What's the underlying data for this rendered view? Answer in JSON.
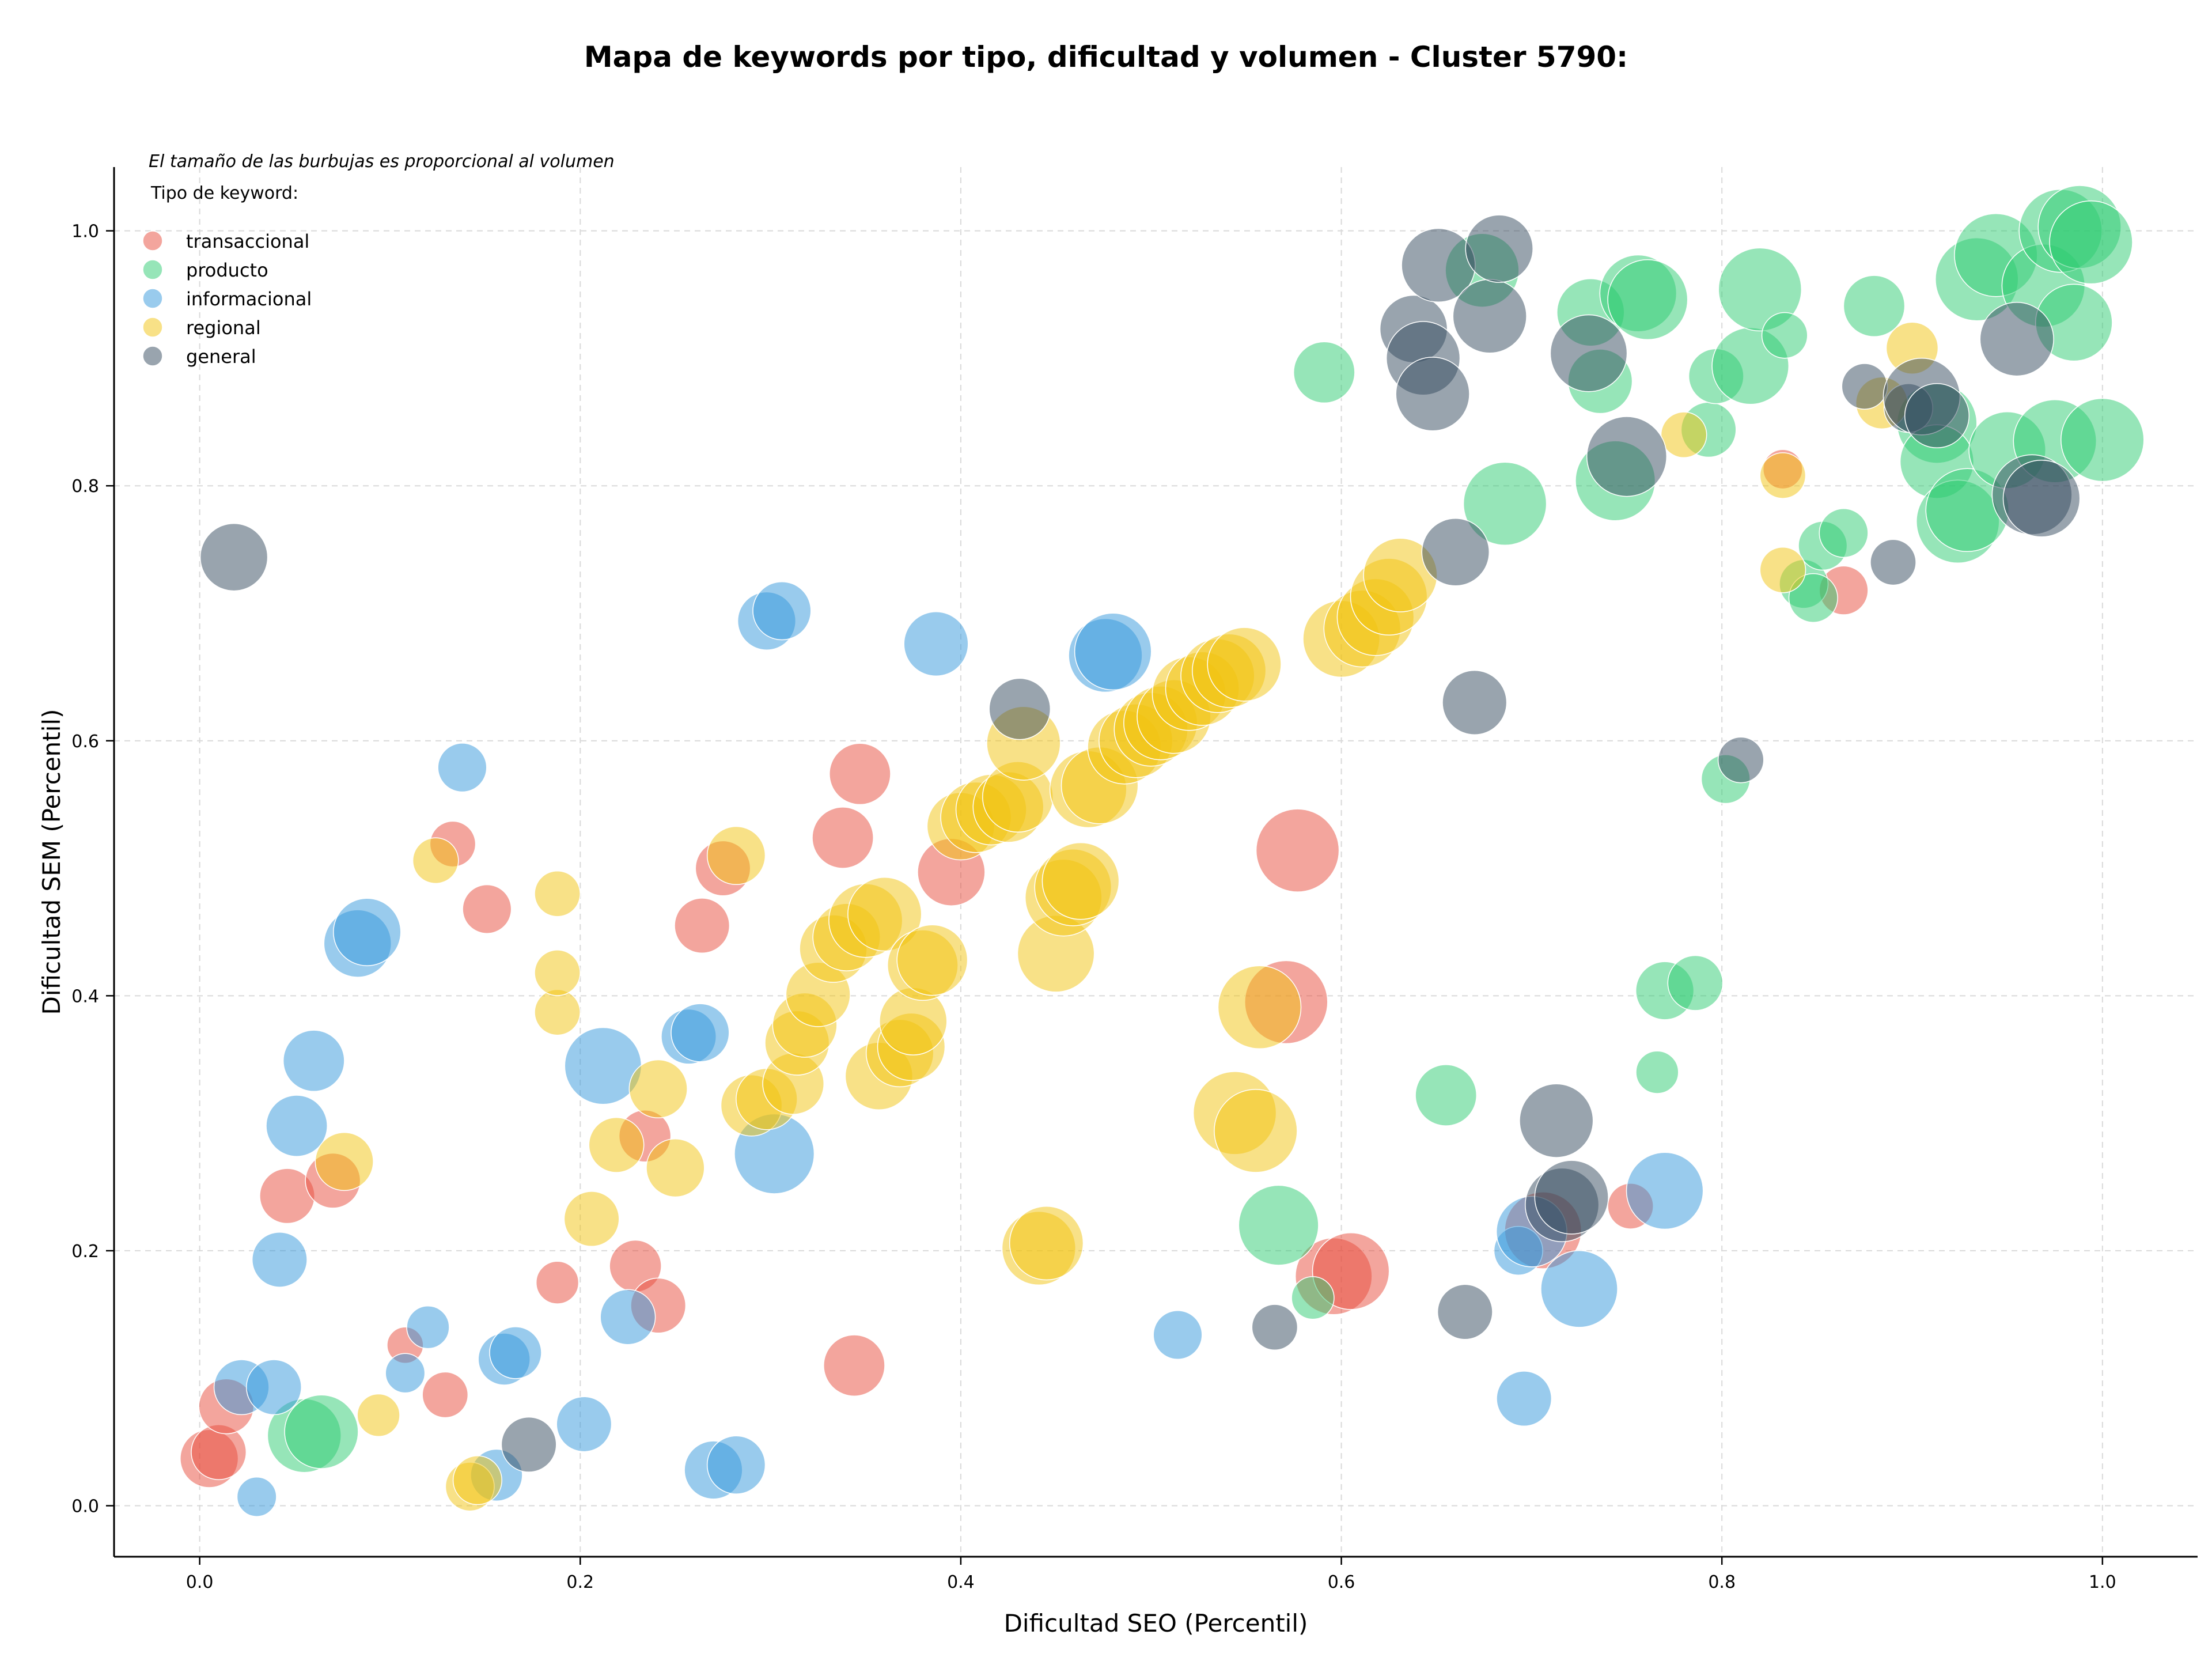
{
  "chart_data": {
    "type": "scatter",
    "title": "Mapa de keywords por tipo, dificultad y volumen - Cluster 5790:",
    "xlabel": "Dificultad SEO (Percentil)",
    "ylabel": "Dificultad SEM (Percentil)",
    "xlim": [
      -0.045,
      1.05
    ],
    "ylim": [
      -0.04,
      1.05
    ],
    "xticks": [
      "0.0",
      "0.2",
      "0.4",
      "0.6",
      "0.8",
      "1.0"
    ],
    "yticks": [
      "0.0",
      "0.2",
      "0.4",
      "0.6",
      "0.8",
      "1.0"
    ],
    "grid": true,
    "legend_position": "top-left",
    "legend_note": "El tamaño de las burbujas es proporcional al volumen",
    "legend_title": "Tipo de keyword:",
    "point_format": "[seo_difficulty, sem_difficulty, relative_volume]",
    "series": [
      {
        "name": "transaccional",
        "color": "#e74c3c",
        "points": [
          [
            0.005,
            0.037,
            0.6
          ],
          [
            0.01,
            0.042,
            0.55
          ],
          [
            0.014,
            0.078,
            0.55
          ],
          [
            0.046,
            0.243,
            0.55
          ],
          [
            0.07,
            0.255,
            0.55
          ],
          [
            0.108,
            0.126,
            0.25
          ],
          [
            0.129,
            0.087,
            0.4
          ],
          [
            0.133,
            0.519,
            0.4
          ],
          [
            0.151,
            0.468,
            0.45
          ],
          [
            0.188,
            0.175,
            0.35
          ],
          [
            0.229,
            0.188,
            0.5
          ],
          [
            0.234,
            0.29,
            0.5
          ],
          [
            0.241,
            0.157,
            0.55
          ],
          [
            0.264,
            0.455,
            0.55
          ],
          [
            0.275,
            0.5,
            0.55
          ],
          [
            0.338,
            0.524,
            0.65
          ],
          [
            0.347,
            0.574,
            0.65
          ],
          [
            0.344,
            0.11,
            0.65
          ],
          [
            0.395,
            0.497,
            0.75
          ],
          [
            0.577,
            0.514,
            1.0
          ],
          [
            0.571,
            0.395,
            1.0
          ],
          [
            0.596,
            0.18,
            0.9
          ],
          [
            0.605,
            0.184,
            0.9
          ],
          [
            0.706,
            0.216,
            0.9
          ],
          [
            0.752,
            0.235,
            0.4
          ],
          [
            0.832,
            0.813,
            0.3
          ],
          [
            0.864,
            0.718,
            0.45
          ]
        ]
      },
      {
        "name": "producto",
        "color": "#2ecc71",
        "points": [
          [
            0.055,
            0.055,
            0.85
          ],
          [
            0.064,
            0.058,
            0.85
          ],
          [
            0.567,
            0.22,
            0.95
          ],
          [
            0.585,
            0.163,
            0.35
          ],
          [
            0.591,
            0.889,
            0.65
          ],
          [
            0.655,
            0.322,
            0.65
          ],
          [
            0.674,
            0.969,
            0.85
          ],
          [
            0.686,
            0.786,
            1.0
          ],
          [
            0.731,
            0.936,
            0.75
          ],
          [
            0.736,
            0.882,
            0.7
          ],
          [
            0.744,
            0.804,
            0.95
          ],
          [
            0.756,
            0.951,
            0.9
          ],
          [
            0.761,
            0.946,
            0.95
          ],
          [
            0.766,
            0.34,
            0.35
          ],
          [
            0.77,
            0.404,
            0.6
          ],
          [
            0.786,
            0.41,
            0.55
          ],
          [
            0.793,
            0.844,
            0.55
          ],
          [
            0.797,
            0.886,
            0.55
          ],
          [
            0.802,
            0.57,
            0.45
          ],
          [
            0.815,
            0.894,
            0.9
          ],
          [
            0.82,
            0.954,
            1.0
          ],
          [
            0.833,
            0.918,
            0.4
          ],
          [
            0.843,
            0.723,
            0.45
          ],
          [
            0.848,
            0.712,
            0.45
          ],
          [
            0.853,
            0.753,
            0.45
          ],
          [
            0.864,
            0.763,
            0.45
          ],
          [
            0.88,
            0.941,
            0.65
          ],
          [
            0.913,
            0.849,
            0.95
          ],
          [
            0.913,
            0.819,
            0.85
          ],
          [
            0.924,
            0.772,
            1.0
          ],
          [
            0.929,
            0.781,
            1.0
          ],
          [
            0.934,
            0.962,
            1.0
          ],
          [
            0.944,
            0.981,
            1.0
          ],
          [
            0.95,
            0.828,
            0.9
          ],
          [
            0.969,
            0.957,
            1.0
          ],
          [
            0.975,
            0.835,
            1.0
          ],
          [
            0.978,
            1.0,
            1.0
          ],
          [
            0.988,
            1.003,
            1.0
          ],
          [
            0.985,
            0.928,
            0.9
          ],
          [
            0.994,
            0.991,
            1.0
          ],
          [
            1.0,
            0.836,
            1.0
          ]
        ]
      },
      {
        "name": "informacional",
        "color": "#3498db",
        "points": [
          [
            0.022,
            0.093,
            0.55
          ],
          [
            0.03,
            0.007,
            0.3
          ],
          [
            0.039,
            0.093,
            0.55
          ],
          [
            0.042,
            0.193,
            0.55
          ],
          [
            0.051,
            0.298,
            0.65
          ],
          [
            0.06,
            0.349,
            0.65
          ],
          [
            0.083,
            0.441,
            0.75
          ],
          [
            0.088,
            0.45,
            0.75
          ],
          [
            0.108,
            0.104,
            0.3
          ],
          [
            0.12,
            0.14,
            0.35
          ],
          [
            0.138,
            0.579,
            0.45
          ],
          [
            0.156,
            0.024,
            0.5
          ],
          [
            0.16,
            0.115,
            0.5
          ],
          [
            0.166,
            0.12,
            0.5
          ],
          [
            0.202,
            0.064,
            0.55
          ],
          [
            0.212,
            0.345,
            0.9
          ],
          [
            0.225,
            0.148,
            0.55
          ],
          [
            0.257,
            0.368,
            0.55
          ],
          [
            0.263,
            0.371,
            0.6
          ],
          [
            0.27,
            0.028,
            0.6
          ],
          [
            0.282,
            0.032,
            0.6
          ],
          [
            0.302,
            0.276,
            0.95
          ],
          [
            0.298,
            0.694,
            0.6
          ],
          [
            0.306,
            0.702,
            0.6
          ],
          [
            0.387,
            0.676,
            0.7
          ],
          [
            0.476,
            0.667,
            0.85
          ],
          [
            0.48,
            0.67,
            0.9
          ],
          [
            0.514,
            0.134,
            0.45
          ],
          [
            0.693,
            0.2,
            0.45
          ],
          [
            0.696,
            0.084,
            0.55
          ],
          [
            0.7,
            0.215,
            0.8
          ],
          [
            0.725,
            0.17,
            0.9
          ],
          [
            0.77,
            0.247,
            0.9
          ]
        ]
      },
      {
        "name": "regional",
        "color": "#f1c40f",
        "points": [
          [
            0.076,
            0.27,
            0.6
          ],
          [
            0.094,
            0.071,
            0.35
          ],
          [
            0.124,
            0.506,
            0.4
          ],
          [
            0.142,
            0.015,
            0.45
          ],
          [
            0.146,
            0.02,
            0.45
          ],
          [
            0.188,
            0.387,
            0.4
          ],
          [
            0.188,
            0.418,
            0.4
          ],
          [
            0.188,
            0.48,
            0.4
          ],
          [
            0.206,
            0.225,
            0.55
          ],
          [
            0.219,
            0.283,
            0.55
          ],
          [
            0.241,
            0.327,
            0.6
          ],
          [
            0.25,
            0.265,
            0.6
          ],
          [
            0.282,
            0.51,
            0.6
          ],
          [
            0.29,
            0.314,
            0.65
          ],
          [
            0.298,
            0.319,
            0.65
          ],
          [
            0.312,
            0.331,
            0.65
          ],
          [
            0.314,
            0.363,
            0.7
          ],
          [
            0.318,
            0.377,
            0.7
          ],
          [
            0.325,
            0.401,
            0.7
          ],
          [
            0.333,
            0.437,
            0.75
          ],
          [
            0.34,
            0.446,
            0.75
          ],
          [
            0.357,
            0.337,
            0.75
          ],
          [
            0.35,
            0.459,
            0.85
          ],
          [
            0.36,
            0.464,
            0.85
          ],
          [
            0.368,
            0.355,
            0.75
          ],
          [
            0.374,
            0.36,
            0.75
          ],
          [
            0.375,
            0.38,
            0.75
          ],
          [
            0.38,
            0.424,
            0.8
          ],
          [
            0.385,
            0.428,
            0.8
          ],
          [
            0.4,
            0.533,
            0.75
          ],
          [
            0.408,
            0.54,
            0.8
          ],
          [
            0.416,
            0.546,
            0.8
          ],
          [
            0.425,
            0.548,
            0.8
          ],
          [
            0.43,
            0.556,
            0.8
          ],
          [
            0.433,
            0.598,
            0.85
          ],
          [
            0.441,
            0.202,
            0.85
          ],
          [
            0.445,
            0.206,
            0.85
          ],
          [
            0.45,
            0.433,
            0.9
          ],
          [
            0.454,
            0.477,
            0.9
          ],
          [
            0.459,
            0.485,
            0.9
          ],
          [
            0.463,
            0.49,
            0.9
          ],
          [
            0.467,
            0.562,
            0.9
          ],
          [
            0.473,
            0.565,
            0.9
          ],
          [
            0.486,
            0.595,
            0.85
          ],
          [
            0.492,
            0.6,
            0.85
          ],
          [
            0.5,
            0.609,
            0.85
          ],
          [
            0.505,
            0.614,
            0.85
          ],
          [
            0.512,
            0.619,
            0.85
          ],
          [
            0.52,
            0.637,
            0.85
          ],
          [
            0.527,
            0.641,
            0.85
          ],
          [
            0.535,
            0.651,
            0.85
          ],
          [
            0.541,
            0.655,
            0.85
          ],
          [
            0.549,
            0.66,
            0.85
          ],
          [
            0.544,
            0.308,
            1.0
          ],
          [
            0.555,
            0.294,
            1.0
          ],
          [
            0.557,
            0.391,
            1.0
          ],
          [
            0.6,
            0.68,
            0.9
          ],
          [
            0.611,
            0.688,
            0.9
          ],
          [
            0.618,
            0.697,
            0.9
          ],
          [
            0.625,
            0.713,
            0.9
          ],
          [
            0.631,
            0.73,
            0.85
          ],
          [
            0.78,
            0.84,
            0.4
          ],
          [
            0.832,
            0.734,
            0.4
          ],
          [
            0.832,
            0.808,
            0.4
          ],
          [
            0.884,
            0.865,
            0.5
          ],
          [
            0.9,
            0.908,
            0.5
          ]
        ]
      },
      {
        "name": "general",
        "color": "#34495e",
        "points": [
          [
            0.018,
            0.744,
            0.75
          ],
          [
            0.173,
            0.048,
            0.55
          ],
          [
            0.431,
            0.625,
            0.65
          ],
          [
            0.565,
            0.14,
            0.4
          ],
          [
            0.638,
            0.923,
            0.75
          ],
          [
            0.643,
            0.9,
            0.85
          ],
          [
            0.648,
            0.872,
            0.85
          ],
          [
            0.651,
            0.973,
            0.85
          ],
          [
            0.66,
            0.748,
            0.75
          ],
          [
            0.665,
            0.152,
            0.55
          ],
          [
            0.67,
            0.63,
            0.7
          ],
          [
            0.678,
            0.933,
            0.85
          ],
          [
            0.683,
            0.986,
            0.75
          ],
          [
            0.713,
            0.302,
            0.85
          ],
          [
            0.716,
            0.236,
            0.85
          ],
          [
            0.721,
            0.242,
            0.85
          ],
          [
            0.73,
            0.904,
            0.9
          ],
          [
            0.75,
            0.823,
            0.95
          ],
          [
            0.81,
            0.585,
            0.4
          ],
          [
            0.875,
            0.878,
            0.4
          ],
          [
            0.89,
            0.74,
            0.4
          ],
          [
            0.898,
            0.861,
            0.45
          ],
          [
            0.905,
            0.87,
            0.9
          ],
          [
            0.913,
            0.855,
            0.7
          ],
          [
            0.955,
            0.915,
            0.85
          ],
          [
            0.963,
            0.793,
            0.95
          ],
          [
            0.968,
            0.79,
            0.9
          ]
        ]
      }
    ]
  }
}
